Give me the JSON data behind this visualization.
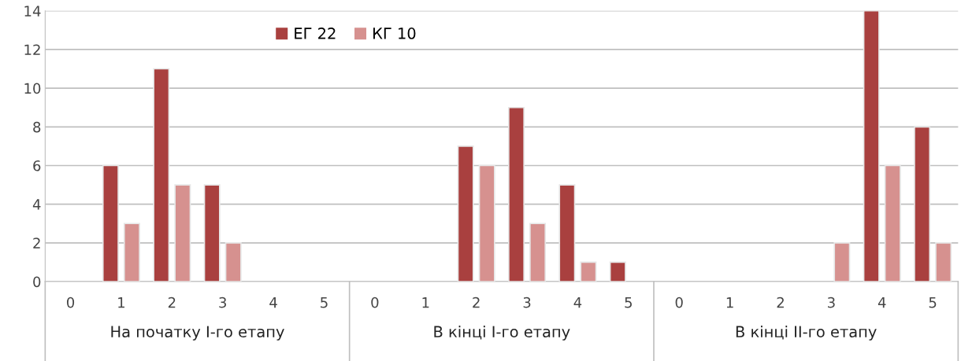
{
  "chart_data": {
    "type": "bar",
    "categories": [
      "0",
      "1",
      "2",
      "3",
      "4",
      "5",
      "0",
      "1",
      "2",
      "3",
      "4",
      "5",
      "0",
      "1",
      "2",
      "3",
      "4",
      "5"
    ],
    "series": [
      {
        "name": "ЕГ 22",
        "color": "#a9403f",
        "values": [
          0,
          6,
          11,
          5,
          0,
          0,
          0,
          0,
          7,
          9,
          5,
          1,
          0,
          0,
          0,
          0,
          14,
          8
        ]
      },
      {
        "name": "КГ 10",
        "color": "#d6918f",
        "values": [
          0,
          3,
          5,
          2,
          0,
          0,
          0,
          0,
          6,
          3,
          1,
          0,
          0,
          0,
          0,
          2,
          6,
          2
        ]
      }
    ],
    "annotations": [
      "На початку І-го етапу",
      "В кінці І-го етапу",
      "В кінці ІІ-го етапу"
    ],
    "ylim": [
      0,
      14
    ],
    "yticks": [
      0,
      2,
      4,
      6,
      8,
      10,
      12,
      14
    ],
    "grid": "y",
    "legend": "top"
  }
}
